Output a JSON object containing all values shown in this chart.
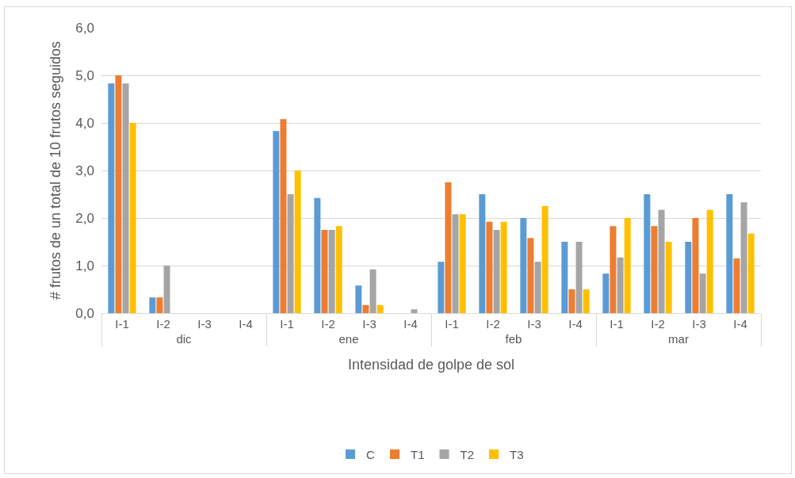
{
  "chart_data": {
    "type": "bar",
    "xlabel": "Intensidad de golpe de sol",
    "ylabel": "# frutos de un total de 10 frutos seguidos",
    "categories": [
      "I-1",
      "I-2",
      "I-3",
      "I-4",
      "I-1",
      "I-2",
      "I-3",
      "I-4",
      "I-1",
      "I-2",
      "I-3",
      "I-4",
      "I-1",
      "I-2",
      "I-3",
      "I-4"
    ],
    "annotations": [
      "dic",
      "ene",
      "feb",
      "mar"
    ],
    "series": [
      {
        "name": "C",
        "color": "#5b9bd5",
        "values": [
          4.83,
          0.33,
          0,
          0,
          3.83,
          2.42,
          0.58,
          0,
          1.08,
          2.5,
          2.0,
          1.5,
          0.83,
          2.5,
          1.5,
          2.5
        ]
      },
      {
        "name": "T1",
        "color": "#ed7d31",
        "values": [
          5.0,
          0.33,
          0,
          0,
          4.08,
          1.75,
          0.17,
          0,
          2.75,
          1.92,
          1.58,
          0.5,
          1.83,
          1.83,
          2.0,
          1.15
        ]
      },
      {
        "name": "T2",
        "color": "#a5a5a5",
        "values": [
          4.83,
          1.0,
          0,
          0,
          2.5,
          1.75,
          0.92,
          0.08,
          2.08,
          1.75,
          1.08,
          1.5,
          1.17,
          2.17,
          0.83,
          2.33
        ]
      },
      {
        "name": "T3",
        "color": "#ffc000",
        "values": [
          4.0,
          0,
          0,
          0,
          3.0,
          1.83,
          0.17,
          0,
          2.08,
          1.92,
          2.25,
          0.5,
          2.0,
          1.5,
          2.17,
          1.67
        ]
      }
    ],
    "ylim": [
      0,
      6
    ],
    "yticks": [
      {
        "value": 0,
        "label": "0,0"
      },
      {
        "value": 1,
        "label": "1,0"
      },
      {
        "value": 2,
        "label": "2,0"
      },
      {
        "value": 3,
        "label": "3,0"
      },
      {
        "value": 4,
        "label": "4,0"
      },
      {
        "value": 5,
        "label": "5,0"
      },
      {
        "value": 6,
        "label": "6,0"
      }
    ],
    "grid": "y",
    "legend": "bottom"
  }
}
